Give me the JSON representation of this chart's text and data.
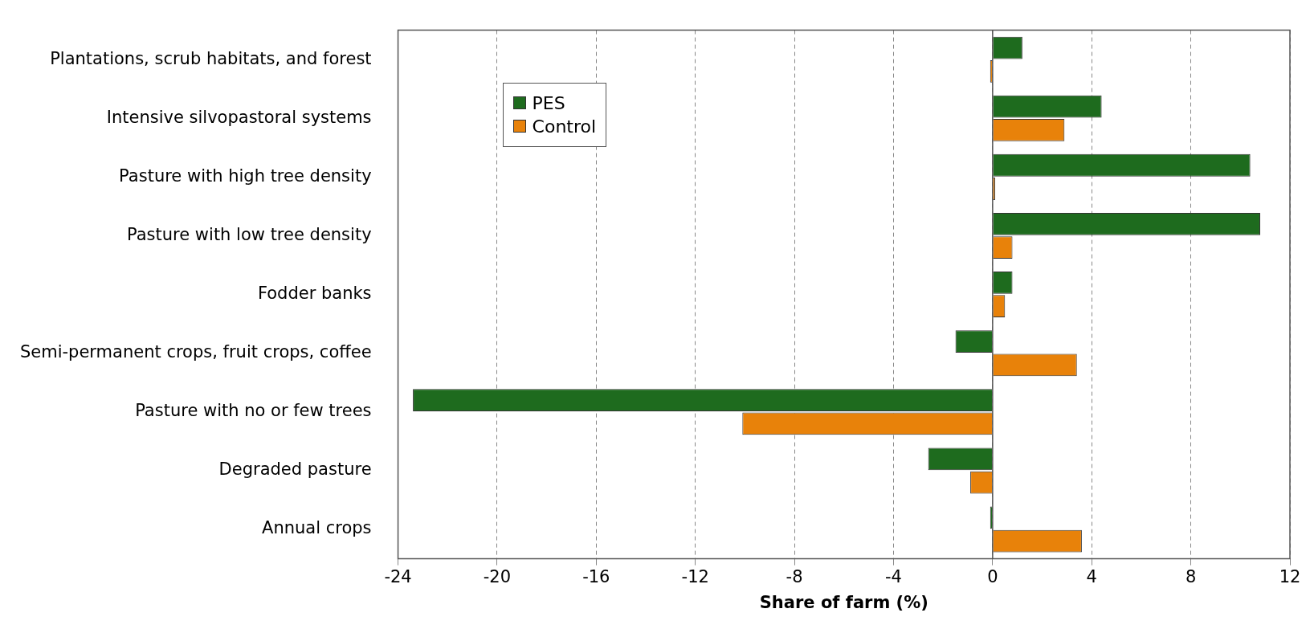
{
  "chart_data": {
    "type": "bar",
    "orientation": "horizontal",
    "xlabel": "Share of farm (%)",
    "categories": [
      "Plantations, scrub habitats, and forest",
      "Intensive silvopastoral systems",
      "Pasture with high tree density",
      "Pasture with low tree density",
      "Fodder banks",
      "Semi-permanent crops, fruit crops, coffee",
      "Pasture with no or few trees",
      "Degraded pasture",
      "Annual crops"
    ],
    "series": [
      {
        "name": "PES",
        "color": "#1e6b1e",
        "values": [
          1.2,
          4.4,
          10.4,
          10.8,
          0.8,
          -1.5,
          -23.4,
          -2.6,
          -0.1
        ]
      },
      {
        "name": "Control",
        "color": "#e8820a",
        "values": [
          -0.1,
          2.9,
          0.1,
          0.8,
          0.5,
          3.4,
          -10.1,
          -0.9,
          3.6
        ]
      }
    ],
    "xlim": [
      -24,
      12
    ],
    "xticks": [
      -24,
      -20,
      -16,
      -12,
      -8,
      -4,
      0,
      4,
      8,
      12
    ],
    "grid": "x",
    "legend": "top left"
  }
}
